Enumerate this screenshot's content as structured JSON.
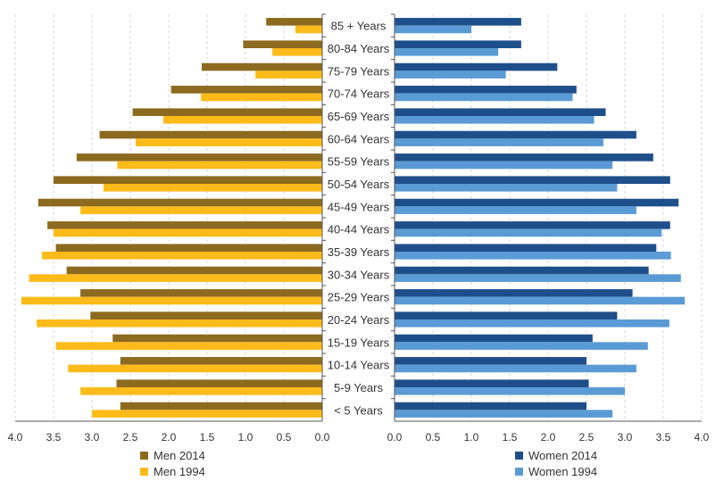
{
  "chart_data": {
    "type": "bar",
    "orientation": "horizontal",
    "layout": "population-pyramid",
    "categories": [
      "85 + Years",
      "80-84 Years",
      "75-79 Years",
      "70-74 Years",
      "65-69 Years",
      "60-64 Years",
      "55-59 Years",
      "50-54 Years",
      "45-49 Years",
      "40-44 Years",
      "35-39 Years",
      "30-34 Years",
      "25-29 Years",
      "20-24 Years",
      "15-19 Years",
      "10-14 Years",
      "5-9 Years",
      "< 5 Years"
    ],
    "left_panel": {
      "xlim": [
        4.0,
        0.0
      ],
      "ticks": [
        "4.0",
        "3.5",
        "3.0",
        "2.5",
        "2.0",
        "1.5",
        "1.0",
        "0.5",
        "0.0"
      ],
      "series": [
        {
          "name": "Men 2014",
          "color": "#8c6a1f",
          "values": [
            0.73,
            1.03,
            1.57,
            1.97,
            2.47,
            2.9,
            3.2,
            3.5,
            3.7,
            3.58,
            3.47,
            3.33,
            3.15,
            3.02,
            2.73,
            2.63,
            2.68,
            2.63
          ]
        },
        {
          "name": "Men 1994",
          "color": "#fdbb1a",
          "values": [
            0.35,
            0.65,
            0.87,
            1.58,
            2.07,
            2.43,
            2.67,
            2.85,
            3.15,
            3.5,
            3.65,
            3.82,
            3.92,
            3.72,
            3.47,
            3.31,
            3.15,
            3.0
          ]
        }
      ]
    },
    "right_panel": {
      "xlim": [
        0.0,
        4.0
      ],
      "ticks": [
        "0.0",
        "0.5",
        "1.0",
        "1.5",
        "2.0",
        "2.5",
        "3.0",
        "3.5",
        "4.0"
      ],
      "series": [
        {
          "name": "Women 2014",
          "color": "#1f4f8a",
          "values": [
            1.65,
            1.65,
            2.12,
            2.37,
            2.75,
            3.15,
            3.37,
            3.59,
            3.7,
            3.59,
            3.41,
            3.31,
            3.1,
            2.9,
            2.58,
            2.5,
            2.53,
            2.5
          ]
        },
        {
          "name": "Women 1994",
          "color": "#5b9bd5",
          "values": [
            1.0,
            1.35,
            1.45,
            2.32,
            2.6,
            2.72,
            2.84,
            2.9,
            3.15,
            3.48,
            3.6,
            3.73,
            3.78,
            3.58,
            3.3,
            3.15,
            3.0,
            2.84
          ]
        }
      ]
    },
    "legend": "bottom",
    "grid": true
  }
}
